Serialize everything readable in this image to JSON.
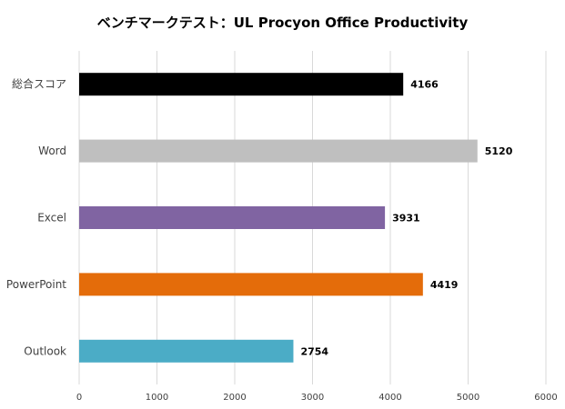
{
  "chart_data": {
    "type": "bar",
    "orientation": "horizontal",
    "title": "ベンチマークテスト：UL Procyon Office Productivity",
    "categories": [
      "総合スコア",
      "Word",
      "Excel",
      "PowerPoint",
      "Outlook"
    ],
    "values": [
      4166,
      5120,
      3931,
      4419,
      2754
    ],
    "colors": [
      "#000000",
      "#bfbfbf",
      "#8064a2",
      "#e46c0a",
      "#4bacc6"
    ],
    "xlim": [
      0,
      6000
    ],
    "xticks": [
      0,
      1000,
      2000,
      3000,
      4000,
      5000,
      6000
    ],
    "xlabel": "",
    "ylabel": "",
    "grid": true,
    "data_labels": true
  }
}
